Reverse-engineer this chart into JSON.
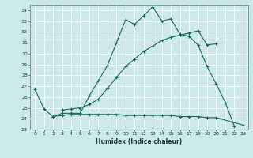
{
  "title": "",
  "xlabel": "Humidex (Indice chaleur)",
  "bg_color": "#cce8e8",
  "grid_color": "#ffffff",
  "line_color": "#1a6b5a",
  "xlim": [
    -0.5,
    23.5
  ],
  "ylim": [
    23,
    34.5
  ],
  "xticks": [
    0,
    1,
    2,
    3,
    4,
    5,
    6,
    7,
    8,
    9,
    10,
    11,
    12,
    13,
    14,
    15,
    16,
    17,
    18,
    19,
    20,
    21,
    22,
    23
  ],
  "yticks": [
    23,
    24,
    25,
    26,
    27,
    28,
    29,
    30,
    31,
    32,
    33,
    34
  ],
  "line1_x": [
    0,
    1,
    2,
    3,
    4,
    5,
    6,
    7,
    8,
    9,
    10,
    11,
    12,
    13,
    14,
    15,
    16,
    17,
    18,
    19,
    20,
    21,
    22
  ],
  "line1_y": [
    26.7,
    24.9,
    24.2,
    24.5,
    24.5,
    24.5,
    26.1,
    27.5,
    28.9,
    31.0,
    33.1,
    32.7,
    33.5,
    34.3,
    33.0,
    33.2,
    31.8,
    31.6,
    30.8,
    28.8,
    27.2,
    25.5,
    23.3
  ],
  "line2_x": [
    3,
    4,
    5,
    6,
    7,
    8,
    9,
    10,
    11,
    12,
    13,
    14,
    15,
    16,
    17,
    18,
    19,
    20
  ],
  "line2_y": [
    24.8,
    24.9,
    25.0,
    25.3,
    25.8,
    26.8,
    27.8,
    28.8,
    29.5,
    30.2,
    30.7,
    31.2,
    31.5,
    31.7,
    31.9,
    32.1,
    30.8,
    30.9
  ],
  "line3_x": [
    2,
    3,
    4,
    5,
    6,
    7,
    8,
    9,
    10,
    11,
    12,
    13,
    14,
    15,
    16,
    17,
    18,
    19,
    20,
    23
  ],
  "line3_y": [
    24.2,
    24.3,
    24.4,
    24.4,
    24.4,
    24.4,
    24.4,
    24.4,
    24.3,
    24.3,
    24.3,
    24.3,
    24.3,
    24.3,
    24.2,
    24.2,
    24.2,
    24.1,
    24.1,
    23.4
  ]
}
